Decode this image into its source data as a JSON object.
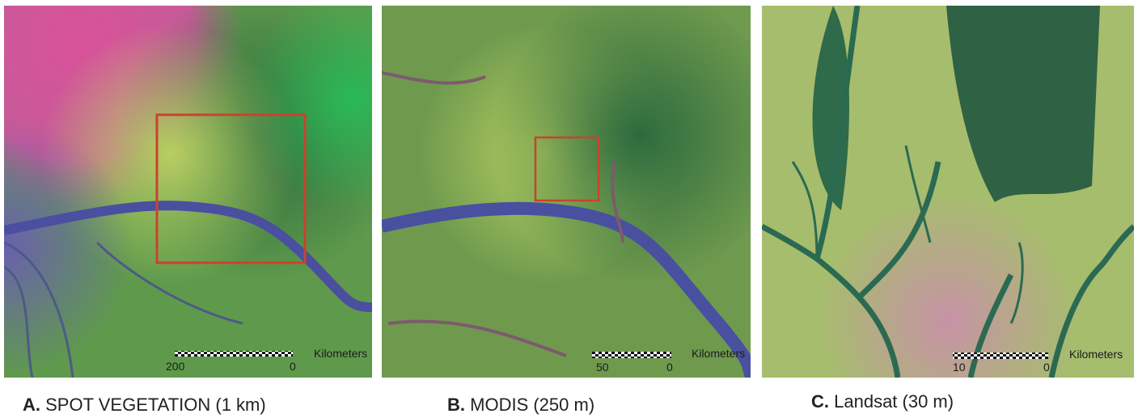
{
  "panels": [
    {
      "letter": "A.",
      "caption": "SPOT VEGETATION (1 km)",
      "scale": {
        "left": "200",
        "right": "0",
        "unit": "Kilometers"
      }
    },
    {
      "letter": "B.",
      "caption": "MODIS (250 m)",
      "scale": {
        "left": "50",
        "right": "0",
        "unit": "Kilometers"
      }
    },
    {
      "letter": "C.",
      "caption": "Landsat (30 m)",
      "scale": {
        "left": "10",
        "right": "0",
        "unit": "Kilometers"
      }
    }
  ]
}
